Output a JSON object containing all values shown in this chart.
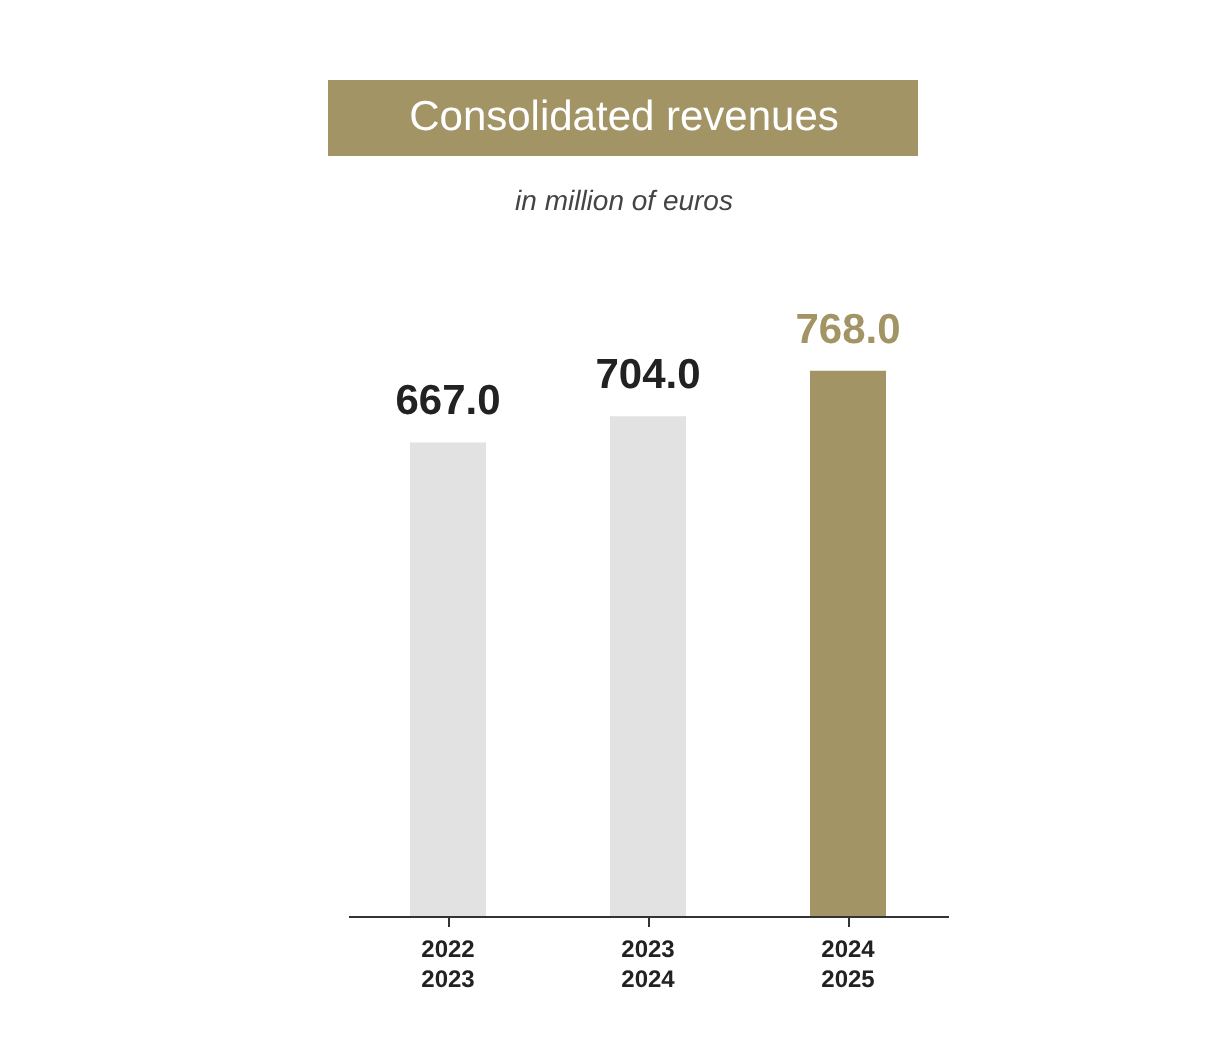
{
  "chart_data": {
    "type": "bar",
    "title": "Consolidated revenues",
    "subtitle": "in million of euros",
    "categories": [
      "2022\n2023",
      "2023\n2024",
      "2024\n2025"
    ],
    "values": [
      667.0,
      704.0,
      768.0
    ],
    "value_labels": [
      "667.0",
      "704.0",
      "768.0"
    ],
    "colors": [
      "#e2e2e2",
      "#e2e2e2",
      "#a39466"
    ],
    "grid": false
  }
}
